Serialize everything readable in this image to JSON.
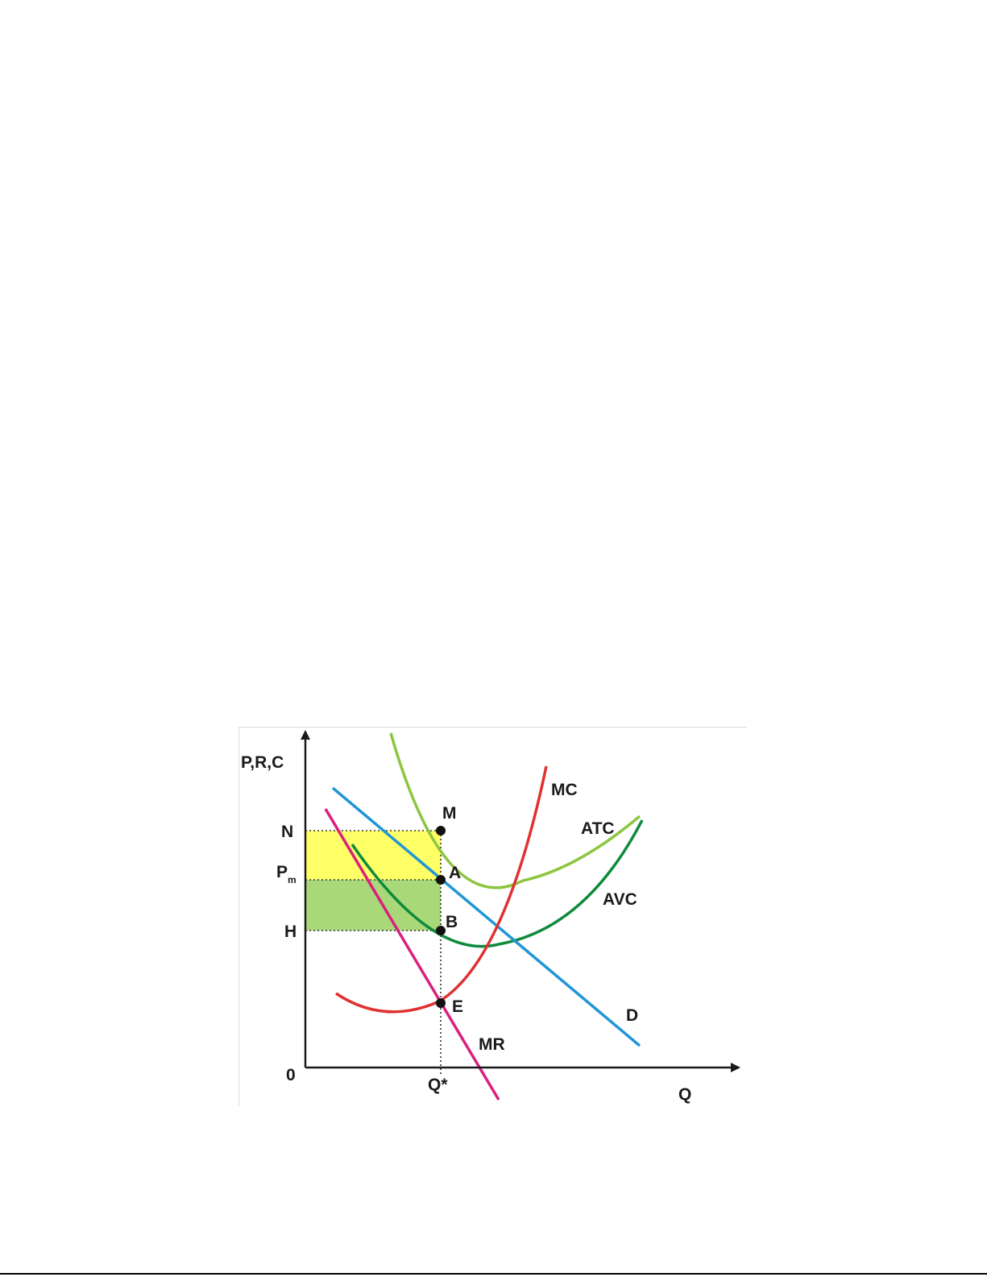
{
  "diagram": {
    "axes": {
      "y_label": "P,R,C",
      "x_label": "Q",
      "origin": "0"
    },
    "price_labels": {
      "n": "N",
      "pm_main": "P",
      "pm_sub": "m",
      "h": "H"
    },
    "quantity_label": "Q*",
    "curves": {
      "mc": "MC",
      "atc": "ATC",
      "avc": "AVC",
      "demand": "D",
      "mr": "MR"
    },
    "points": {
      "m": "M",
      "a": "A",
      "b": "B",
      "e": "E"
    },
    "colors": {
      "mc": "#e03131",
      "atc": "#8cc63f",
      "avc": "#0f8a3c",
      "demand": "#2196d6",
      "mr": "#d9207d",
      "upper_rect": "#ffff66",
      "lower_rect": "#a8d878",
      "axis": "#1a1a1a"
    }
  }
}
